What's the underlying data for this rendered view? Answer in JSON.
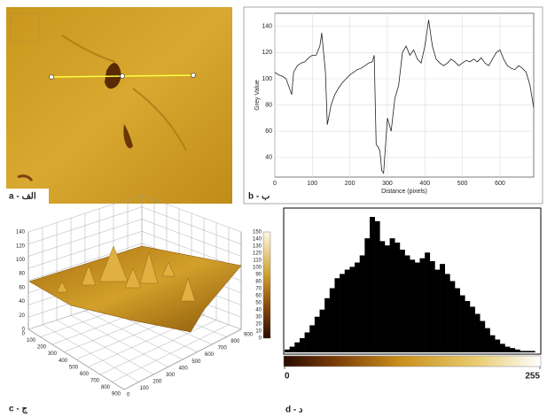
{
  "chart_data": [
    {
      "type": "line",
      "panel_label": "b - ب",
      "xlabel": "Distance (pixels)",
      "ylabel": "Grey Value",
      "x": [
        0,
        10,
        20,
        30,
        40,
        45,
        50,
        60,
        70,
        80,
        90,
        100,
        110,
        120,
        125,
        130,
        135,
        140,
        150,
        160,
        170,
        180,
        190,
        200,
        210,
        220,
        230,
        240,
        250,
        260,
        265,
        270,
        275,
        280,
        285,
        290,
        300,
        310,
        320,
        330,
        340,
        350,
        360,
        370,
        380,
        390,
        400,
        410,
        420,
        430,
        440,
        450,
        460,
        470,
        480,
        490,
        500,
        510,
        520,
        530,
        540,
        550,
        560,
        570,
        580,
        590,
        600,
        610,
        620,
        630,
        640,
        650,
        660,
        670,
        680,
        690
      ],
      "values": [
        105,
        103,
        102,
        100,
        92,
        88,
        105,
        110,
        112,
        113,
        116,
        118,
        118,
        125,
        135,
        120,
        105,
        65,
        80,
        88,
        93,
        97,
        100,
        103,
        105,
        107,
        108,
        110,
        112,
        113,
        118,
        50,
        48,
        45,
        30,
        28,
        70,
        60,
        85,
        95,
        120,
        125,
        118,
        122,
        115,
        112,
        125,
        145,
        125,
        115,
        112,
        110,
        112,
        115,
        113,
        110,
        112,
        114,
        113,
        115,
        113,
        116,
        112,
        110,
        115,
        120,
        122,
        115,
        110,
        108,
        107,
        110,
        108,
        105,
        95,
        78
      ],
      "color": "#222222",
      "xlim": [
        0,
        690
      ],
      "ylim": [
        25,
        150
      ],
      "xticks": [
        0,
        100,
        200,
        300,
        400,
        500,
        600
      ],
      "yticks": [
        40,
        60,
        80,
        100,
        120,
        140
      ],
      "grid": true
    },
    {
      "type": "histogram",
      "panel_label": "d - د",
      "color": "#000000",
      "bins": [
        0,
        5,
        10,
        15,
        20,
        25,
        30,
        35,
        40,
        45,
        50,
        55,
        60,
        65,
        70,
        75,
        80,
        85,
        90,
        95,
        100,
        105,
        110,
        115,
        120,
        125,
        130,
        135,
        140,
        145,
        150,
        155,
        160,
        165,
        170,
        175,
        180,
        185,
        190,
        195,
        200,
        205,
        210,
        215,
        220,
        225,
        230,
        235,
        240,
        245,
        250,
        255
      ],
      "values": [
        2,
        4,
        7,
        10,
        14,
        19,
        25,
        30,
        38,
        45,
        52,
        55,
        58,
        60,
        63,
        68,
        80,
        95,
        92,
        78,
        75,
        80,
        77,
        72,
        68,
        65,
        63,
        66,
        70,
        64,
        58,
        62,
        55,
        50,
        45,
        40,
        36,
        32,
        27,
        22,
        17,
        12,
        9,
        6,
        4,
        3,
        2,
        1,
        1,
        1,
        0
      ],
      "xlim": [
        0,
        255
      ],
      "xticks": [
        0,
        255
      ]
    }
  ],
  "panel_a": {
    "label": "a - الف"
  },
  "panel_c": {
    "label": "c - ج",
    "colorbar_ticks": [
      0,
      10,
      20,
      30,
      40,
      50,
      60,
      70,
      80,
      90,
      100,
      110,
      120,
      130,
      140,
      150
    ],
    "zticks": [
      0,
      20,
      40,
      60,
      80,
      100,
      120,
      140
    ],
    "xticks": [
      0,
      100,
      200,
      300,
      400,
      500,
      600,
      700,
      800,
      900
    ],
    "yticks": [
      0,
      100,
      200,
      300,
      400,
      500,
      600,
      700,
      800,
      900
    ]
  }
}
